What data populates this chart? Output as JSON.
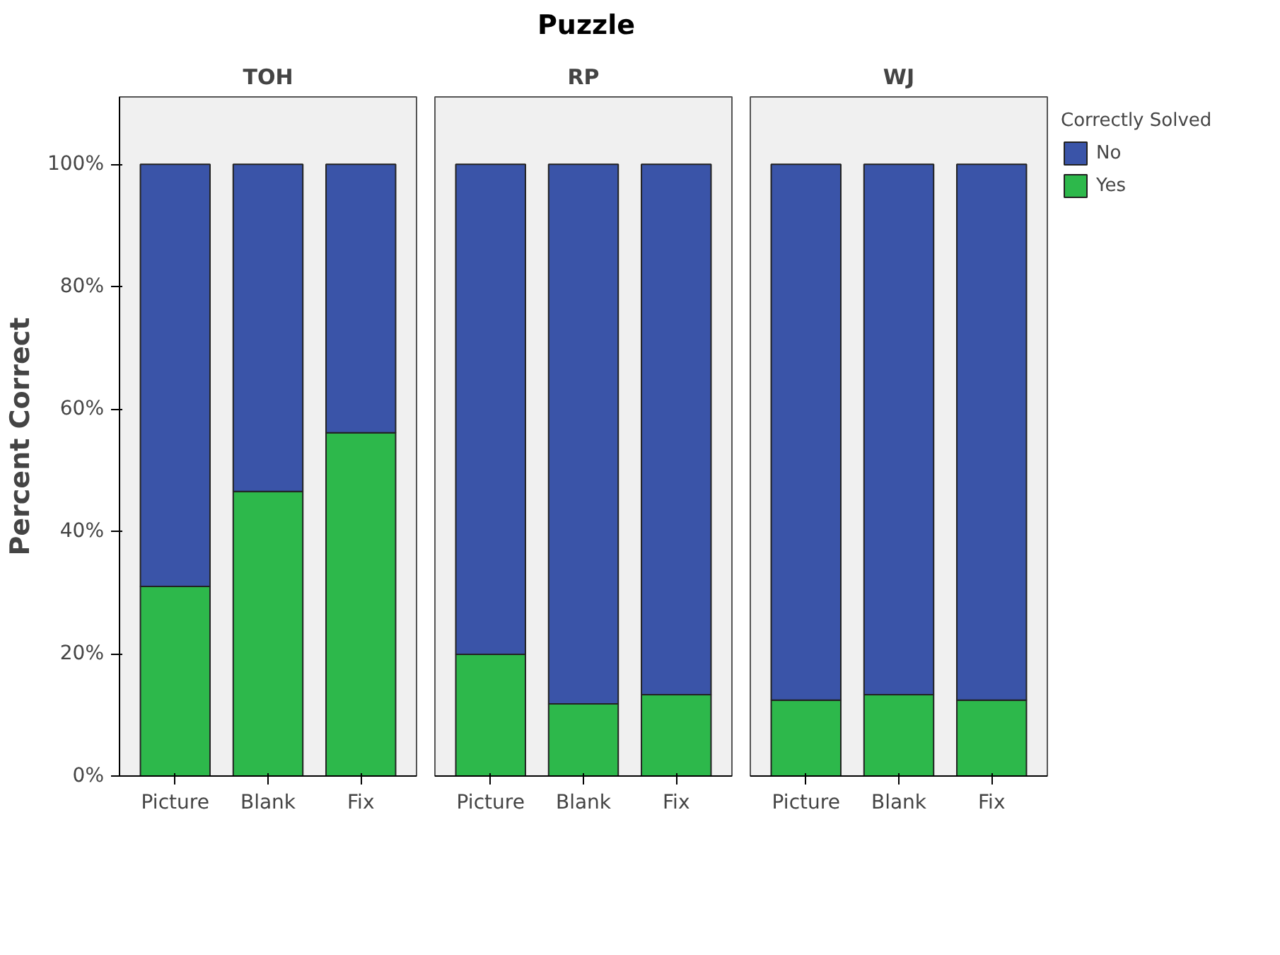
{
  "chart_data": [
    {
      "type": "bar",
      "title": "TOH",
      "ylabel": "Percent Correct",
      "annotations": [
        "Puzzle"
      ],
      "stacked": true,
      "categories": [
        "Picture",
        "Blank",
        "Fix"
      ],
      "series": [
        {
          "color": "#2db84b",
          "values": [
            31.0,
            46.5,
            56.1
          ]
        },
        {
          "color": "#3a54a8",
          "values": [
            69.0,
            53.5,
            43.9
          ]
        }
      ],
      "ylim": [
        0,
        111
      ],
      "yticks": [
        {
          "value": 0,
          "label": "0%"
        },
        {
          "value": 20,
          "label": "20%"
        },
        {
          "value": 40,
          "label": "40%"
        },
        {
          "value": 60,
          "label": "60%"
        },
        {
          "value": 80,
          "label": "80%"
        },
        {
          "value": 100,
          "label": "100%"
        }
      ],
      "grid": false
    },
    {
      "type": "bar",
      "title": "RP",
      "stacked": true,
      "categories": [
        "Picture",
        "Blank",
        "Fix"
      ],
      "tick_labels": "x",
      "series": [
        {
          "color": "#2db84b",
          "values": [
            19.9,
            11.8,
            13.3
          ]
        },
        {
          "color": "#3a54a8",
          "values": [
            80.1,
            88.2,
            86.7
          ]
        }
      ],
      "ylim": [
        0,
        111
      ],
      "grid": false
    },
    {
      "type": "bar",
      "title": "WJ",
      "stacked": true,
      "categories": [
        "Picture",
        "Blank",
        "Fix"
      ],
      "tick_labels": "x",
      "legend": "right",
      "legend_title": "Correctly Solved",
      "series": [
        {
          "name": "Yes",
          "color": "#2db84b",
          "values": [
            12.4,
            13.3,
            12.4
          ]
        },
        {
          "name": "No",
          "color": "#3a54a8",
          "values": [
            87.6,
            86.7,
            87.6
          ]
        }
      ],
      "ylim": [
        0,
        111
      ],
      "grid": false
    }
  ]
}
